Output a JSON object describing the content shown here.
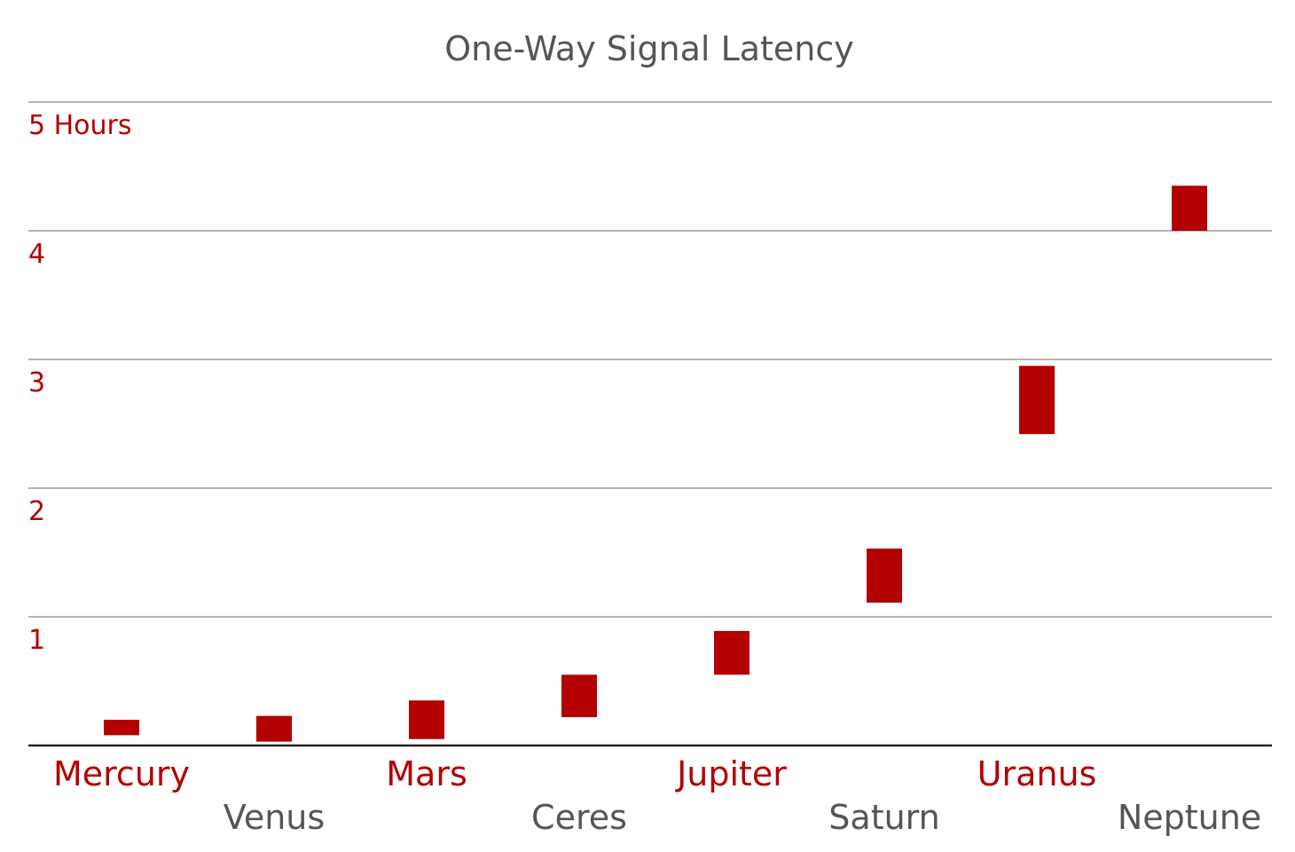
{
  "colors": {
    "accent": "#b30000",
    "muted_text": "#555555",
    "grid": "#999999",
    "axis": "#222222"
  },
  "chart_data": {
    "type": "bar",
    "subtype": "floating-range",
    "title": "One-Way Signal Latency",
    "xlabel": "",
    "ylabel": "",
    "ylim": [
      0,
      5
    ],
    "grid": true,
    "legend": "none",
    "y_ticks": [
      {
        "value": 1,
        "label": "1"
      },
      {
        "value": 2,
        "label": "2"
      },
      {
        "value": 3,
        "label": "3"
      },
      {
        "value": 4,
        "label": "4"
      },
      {
        "value": 5,
        "label": "5 Hours"
      }
    ],
    "categories": [
      "Mercury",
      "Venus",
      "Mars",
      "Ceres",
      "Jupiter",
      "Saturn",
      "Uranus",
      "Neptune"
    ],
    "label_colors": [
      "accent",
      "muted_text",
      "accent",
      "muted_text",
      "accent",
      "muted_text",
      "accent",
      "muted_text"
    ],
    "ranges": [
      [
        0.08,
        0.2
      ],
      [
        0.03,
        0.23
      ],
      [
        0.05,
        0.35
      ],
      [
        0.22,
        0.55
      ],
      [
        0.55,
        0.89
      ],
      [
        1.11,
        1.53
      ],
      [
        2.42,
        2.95
      ],
      [
        4.0,
        4.35
      ]
    ]
  }
}
